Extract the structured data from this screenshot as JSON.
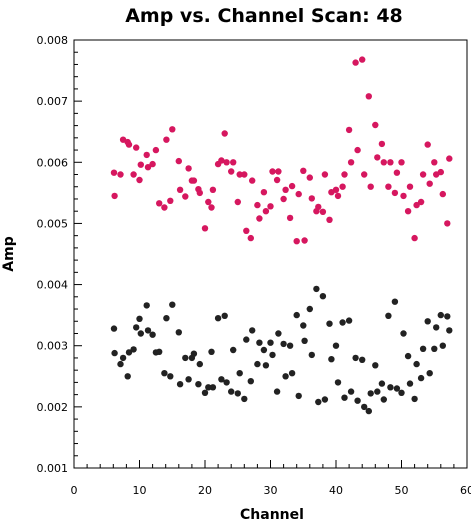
{
  "chart_data": {
    "type": "scatter",
    "title": "Amp vs. Channel Scan: 48",
    "xlabel": "Channel",
    "ylabel": "Amp",
    "xlim": [
      0,
      60
    ],
    "ylim": [
      0.001,
      0.008
    ],
    "xticks": [
      "0",
      "10",
      "20",
      "30",
      "40",
      "50",
      "60"
    ],
    "yticks": [
      "0.001",
      "0.002",
      "0.003",
      "0.004",
      "0.005",
      "0.006",
      "0.007",
      "0.008"
    ],
    "grid": false,
    "series": [
      {
        "color": "#d6175f",
        "points": [
          [
            6.1,
            0.00583
          ],
          [
            6.2,
            0.00545
          ],
          [
            7.1,
            0.0058
          ],
          [
            7.5,
            0.00637
          ],
          [
            8.2,
            0.00633
          ],
          [
            8.4,
            0.00629
          ],
          [
            9.1,
            0.0058
          ],
          [
            9.5,
            0.00624
          ],
          [
            10.0,
            0.00571
          ],
          [
            10.2,
            0.00596
          ],
          [
            11.1,
            0.00612
          ],
          [
            11.3,
            0.00592
          ],
          [
            12.0,
            0.00597
          ],
          [
            12.5,
            0.0062
          ],
          [
            13.0,
            0.00533
          ],
          [
            13.8,
            0.00526
          ],
          [
            14.1,
            0.00637
          ],
          [
            14.7,
            0.00537
          ],
          [
            15.0,
            0.00654
          ],
          [
            16.0,
            0.00602
          ],
          [
            16.2,
            0.00555
          ],
          [
            17.0,
            0.00544
          ],
          [
            17.5,
            0.0059
          ],
          [
            18.0,
            0.0057
          ],
          [
            18.3,
            0.0057
          ],
          [
            19.0,
            0.00556
          ],
          [
            19.2,
            0.0055
          ],
          [
            20.0,
            0.00492
          ],
          [
            20.5,
            0.00535
          ],
          [
            21.0,
            0.00526
          ],
          [
            21.2,
            0.00555
          ],
          [
            22.0,
            0.00597
          ],
          [
            22.5,
            0.00603
          ],
          [
            23.0,
            0.00647
          ],
          [
            23.3,
            0.006
          ],
          [
            24.0,
            0.00585
          ],
          [
            24.3,
            0.006
          ],
          [
            25.0,
            0.00535
          ],
          [
            25.3,
            0.0058
          ],
          [
            26.0,
            0.0058
          ],
          [
            26.3,
            0.00488
          ],
          [
            27.0,
            0.00476
          ],
          [
            27.2,
            0.0057
          ],
          [
            28.0,
            0.0053
          ],
          [
            28.3,
            0.00508
          ],
          [
            29.0,
            0.00551
          ],
          [
            29.3,
            0.0052
          ],
          [
            30.0,
            0.00528
          ],
          [
            30.3,
            0.00585
          ],
          [
            31.0,
            0.00571
          ],
          [
            31.2,
            0.00585
          ],
          [
            32.0,
            0.0054
          ],
          [
            32.3,
            0.00555
          ],
          [
            33.0,
            0.00509
          ],
          [
            33.3,
            0.00561
          ],
          [
            34.0,
            0.00471
          ],
          [
            34.3,
            0.00548
          ],
          [
            35.0,
            0.00586
          ],
          [
            35.2,
            0.00472
          ],
          [
            36.0,
            0.00575
          ],
          [
            36.3,
            0.00541
          ],
          [
            37.0,
            0.0052
          ],
          [
            37.3,
            0.00527
          ],
          [
            38.0,
            0.00519
          ],
          [
            38.3,
            0.0058
          ],
          [
            39.0,
            0.00506
          ],
          [
            39.3,
            0.00551
          ],
          [
            40.0,
            0.00555
          ],
          [
            40.3,
            0.00545
          ],
          [
            41.0,
            0.0056
          ],
          [
            41.3,
            0.0058
          ],
          [
            42.0,
            0.00653
          ],
          [
            42.3,
            0.006
          ],
          [
            43.0,
            0.00763
          ],
          [
            43.3,
            0.0062
          ],
          [
            44.0,
            0.00768
          ],
          [
            44.3,
            0.0058
          ],
          [
            45.0,
            0.00708
          ],
          [
            45.3,
            0.0056
          ],
          [
            46.0,
            0.00661
          ],
          [
            46.3,
            0.00608
          ],
          [
            47.0,
            0.0063
          ],
          [
            47.3,
            0.006
          ],
          [
            48.0,
            0.0056
          ],
          [
            48.3,
            0.006
          ],
          [
            49.0,
            0.0055
          ],
          [
            49.3,
            0.00583
          ],
          [
            50.0,
            0.006
          ],
          [
            50.3,
            0.00545
          ],
          [
            51.0,
            0.0052
          ],
          [
            51.3,
            0.0056
          ],
          [
            52.0,
            0.00476
          ],
          [
            52.3,
            0.0053
          ],
          [
            53.0,
            0.00535
          ],
          [
            53.3,
            0.0058
          ],
          [
            54.0,
            0.00629
          ],
          [
            54.3,
            0.00565
          ],
          [
            55.0,
            0.006
          ],
          [
            55.3,
            0.0058
          ],
          [
            56.0,
            0.00584
          ],
          [
            56.3,
            0.00548
          ],
          [
            57.0,
            0.005
          ],
          [
            57.3,
            0.00606
          ]
        ]
      },
      {
        "color": "#222222",
        "points": [
          [
            6.1,
            0.00328
          ],
          [
            6.2,
            0.00288
          ],
          [
            7.1,
            0.0027
          ],
          [
            7.5,
            0.0028
          ],
          [
            8.2,
            0.0025
          ],
          [
            8.4,
            0.00289
          ],
          [
            9.1,
            0.00294
          ],
          [
            9.5,
            0.0033
          ],
          [
            10.0,
            0.00344
          ],
          [
            10.2,
            0.0032
          ],
          [
            11.1,
            0.00366
          ],
          [
            11.3,
            0.00325
          ],
          [
            12.0,
            0.00318
          ],
          [
            12.5,
            0.00289
          ],
          [
            13.0,
            0.0029
          ],
          [
            13.8,
            0.00255
          ],
          [
            14.1,
            0.00345
          ],
          [
            14.7,
            0.0025
          ],
          [
            15.0,
            0.00367
          ],
          [
            16.0,
            0.00322
          ],
          [
            16.2,
            0.00237
          ],
          [
            17.0,
            0.0028
          ],
          [
            17.5,
            0.00245
          ],
          [
            18.0,
            0.0028
          ],
          [
            18.3,
            0.00287
          ],
          [
            19.0,
            0.00237
          ],
          [
            19.2,
            0.0027
          ],
          [
            20.0,
            0.00223
          ],
          [
            20.5,
            0.00232
          ],
          [
            21.0,
            0.0029
          ],
          [
            21.2,
            0.00232
          ],
          [
            22.0,
            0.00345
          ],
          [
            22.5,
            0.00245
          ],
          [
            23.0,
            0.00349
          ],
          [
            23.3,
            0.0024
          ],
          [
            24.0,
            0.00225
          ],
          [
            24.3,
            0.00293
          ],
          [
            25.0,
            0.00222
          ],
          [
            25.3,
            0.00255
          ],
          [
            26.0,
            0.00213
          ],
          [
            26.3,
            0.0031
          ],
          [
            27.0,
            0.00242
          ],
          [
            27.2,
            0.00325
          ],
          [
            28.0,
            0.0027
          ],
          [
            28.3,
            0.00305
          ],
          [
            29.0,
            0.00293
          ],
          [
            29.3,
            0.00268
          ],
          [
            30.0,
            0.00305
          ],
          [
            30.3,
            0.00285
          ],
          [
            31.0,
            0.00225
          ],
          [
            31.2,
            0.0032
          ],
          [
            32.0,
            0.00303
          ],
          [
            32.3,
            0.0025
          ],
          [
            33.0,
            0.003
          ],
          [
            33.3,
            0.00255
          ],
          [
            34.0,
            0.0035
          ],
          [
            34.3,
            0.00218
          ],
          [
            35.0,
            0.00333
          ],
          [
            35.2,
            0.00308
          ],
          [
            36.0,
            0.0036
          ],
          [
            36.3,
            0.00285
          ],
          [
            37.0,
            0.00393
          ],
          [
            37.3,
            0.00208
          ],
          [
            38.0,
            0.00381
          ],
          [
            38.3,
            0.00212
          ],
          [
            39.0,
            0.00336
          ],
          [
            39.3,
            0.00278
          ],
          [
            40.0,
            0.003
          ],
          [
            40.3,
            0.0024
          ],
          [
            41.0,
            0.00338
          ],
          [
            41.3,
            0.00215
          ],
          [
            42.0,
            0.00341
          ],
          [
            42.3,
            0.00225
          ],
          [
            43.0,
            0.0028
          ],
          [
            43.3,
            0.0021
          ],
          [
            44.0,
            0.00277
          ],
          [
            44.3,
            0.002
          ],
          [
            45.0,
            0.00193
          ],
          [
            45.3,
            0.00222
          ],
          [
            46.0,
            0.00268
          ],
          [
            46.3,
            0.00225
          ],
          [
            47.0,
            0.00238
          ],
          [
            47.3,
            0.00212
          ],
          [
            48.0,
            0.00349
          ],
          [
            48.3,
            0.00232
          ],
          [
            49.0,
            0.00372
          ],
          [
            49.3,
            0.0023
          ],
          [
            50.0,
            0.00223
          ],
          [
            50.3,
            0.0032
          ],
          [
            51.0,
            0.00283
          ],
          [
            51.3,
            0.00238
          ],
          [
            52.0,
            0.00213
          ],
          [
            52.3,
            0.0027
          ],
          [
            53.0,
            0.00247
          ],
          [
            53.3,
            0.00295
          ],
          [
            54.0,
            0.0034
          ],
          [
            54.3,
            0.00255
          ],
          [
            55.0,
            0.00295
          ],
          [
            55.3,
            0.0033
          ],
          [
            56.0,
            0.0035
          ],
          [
            56.3,
            0.003
          ],
          [
            57.0,
            0.00348
          ],
          [
            57.3,
            0.00325
          ]
        ]
      }
    ]
  }
}
